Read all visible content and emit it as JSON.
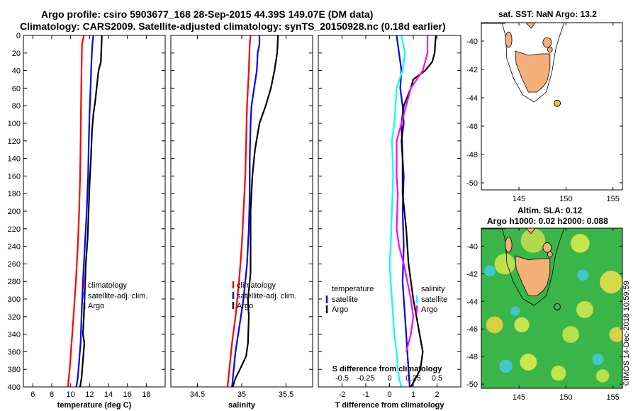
{
  "figure": {
    "title_line1": "Argo profile: csiro 5903677_168 28-Sep-2015 44.39S 149.07E (DM data)",
    "title_line2": "Climatology: CARS2009. Satellite-adjusted climatology: synTS_20150928.nc (0.18d earlier)",
    "map1_title": "sat. SST: NaN Argo: 13.2",
    "map2_title_line1": "Altim. SLA: 0.12",
    "map2_title_line2": "Argo h1000: 0.02 h2000: 0.088",
    "credit": "©IMOS 14-Dec-2018 10:59:59"
  },
  "colors": {
    "climatology": "#ff0000",
    "satellite_adj": "#0000ff",
    "argo": "#000000",
    "temp_satellite": "#0000ff",
    "sal_satellite": "#00ffff",
    "temp_argo": "#000000",
    "sal_argo": "#ff00ff",
    "land": "#f5b07a",
    "sla_green": "#39b54a"
  },
  "chart_data": [
    {
      "type": "line",
      "id": "temperature",
      "xlabel": "temperature (deg C)",
      "ylabel": "",
      "xlim": [
        5,
        20
      ],
      "ylim": [
        400,
        0
      ],
      "xticks": [
        "6",
        "8",
        "10",
        "12",
        "14",
        "16",
        "18"
      ],
      "xtick_values": [
        6,
        8,
        10,
        12,
        14,
        16,
        18
      ],
      "yticks": [
        0,
        20,
        40,
        60,
        80,
        100,
        120,
        140,
        160,
        180,
        200,
        220,
        240,
        260,
        280,
        300,
        320,
        340,
        360,
        380,
        400
      ],
      "legend": [
        "climatology",
        "satellite-adj. clim.",
        "Argo"
      ],
      "series": [
        {
          "name": "climatology",
          "color": "#ff0000",
          "x": [
            11.4,
            11.2,
            11.15,
            11.1,
            11.05,
            11.0,
            10.9,
            10.75,
            10.55,
            10.3,
            10.1,
            9.9,
            9.7
          ],
          "y": [
            0,
            10,
            40,
            80,
            120,
            160,
            200,
            240,
            280,
            320,
            350,
            380,
            400
          ]
        },
        {
          "name": "satellite-adj. clim.",
          "color": "#0000ff",
          "x": [
            12.4,
            12.3,
            12.2,
            12.1,
            12.0,
            11.9,
            11.85,
            11.7,
            11.5,
            11.3,
            11.15,
            11.05,
            10.9,
            10.75,
            10.6
          ],
          "y": [
            0,
            10,
            30,
            60,
            90,
            130,
            160,
            200,
            240,
            280,
            320,
            350,
            370,
            390,
            400
          ]
        },
        {
          "name": "Argo",
          "color": "#000000",
          "x": [
            13.3,
            13.25,
            13.2,
            12.95,
            12.75,
            12.6,
            12.4,
            12.25,
            12.15,
            12.0,
            11.9,
            11.8,
            11.6,
            11.5,
            11.4,
            11.3,
            11.45,
            11.3,
            11.15,
            11.0
          ],
          "y": [
            0,
            15,
            30,
            40,
            60,
            75,
            90,
            110,
            140,
            170,
            200,
            230,
            260,
            290,
            320,
            340,
            350,
            370,
            390,
            400
          ]
        }
      ]
    },
    {
      "type": "line",
      "id": "salinity",
      "xlabel": "salinity",
      "xlim": [
        34.2,
        35.8
      ],
      "ylim": [
        400,
        0
      ],
      "xticks": [
        "34.5",
        "35",
        "35.5"
      ],
      "xtick_values": [
        34.5,
        35,
        35.5
      ],
      "legend": [
        "climatology",
        "satellite-adj. clim.",
        "Argo"
      ],
      "series": [
        {
          "name": "climatology",
          "color": "#ff0000",
          "x": [
            35.1,
            35.09,
            35.08,
            35.06,
            35.05,
            35.04,
            35.02,
            35.0,
            34.97,
            34.93,
            34.89,
            34.86,
            34.84
          ],
          "y": [
            0,
            10,
            40,
            80,
            120,
            160,
            200,
            240,
            280,
            320,
            350,
            380,
            400
          ]
        },
        {
          "name": "satellite-adj. clim.",
          "color": "#0000ff",
          "x": [
            35.2,
            35.2,
            35.18,
            35.17,
            35.14,
            35.11,
            35.1,
            35.09,
            35.09,
            35.08,
            35.06,
            35.02,
            34.99,
            34.96,
            34.93,
            34.91,
            34.89
          ],
          "y": [
            0,
            10,
            20,
            40,
            60,
            80,
            100,
            140,
            180,
            220,
            260,
            300,
            320,
            340,
            360,
            380,
            400
          ]
        },
        {
          "name": "Argo",
          "color": "#000000",
          "x": [
            35.41,
            35.4,
            35.37,
            35.33,
            35.27,
            35.2,
            35.15,
            35.12,
            35.1,
            35.1,
            35.1,
            35.07,
            35.08,
            35.07,
            35.05,
            34.98,
            34.93,
            34.9
          ],
          "y": [
            0,
            20,
            40,
            60,
            80,
            100,
            130,
            160,
            200,
            240,
            270,
            300,
            320,
            350,
            365,
            380,
            390,
            400
          ]
        }
      ]
    },
    {
      "type": "line",
      "id": "differences",
      "xlabel": "T difference from climatology",
      "xlabel_top": "S difference from climatology",
      "xlim": [
        -3,
        3
      ],
      "ylim": [
        400,
        0
      ],
      "xticks": [
        "-2",
        "-1",
        "0",
        "1",
        "2"
      ],
      "xtick_values": [
        -2,
        -1,
        0,
        1,
        2
      ],
      "xticks_top": [
        "-0.5",
        "-0.25",
        "0",
        "0.25",
        "0.5"
      ],
      "xtick_values_top": [
        -0.5,
        -0.25,
        0,
        0.25,
        0.5
      ],
      "legend_temperature": {
        "title": "temperature",
        "items": [
          "satellite",
          "Argo"
        ]
      },
      "legend_salinity": {
        "title": "salinity",
        "items": [
          "satellite",
          "Argo"
        ]
      },
      "series": [
        {
          "name": "temperature satellite",
          "color": "#0000ff",
          "x": [
            0.3,
            0.4,
            0.5,
            0.45,
            0.55,
            0.6,
            0.5,
            0.55,
            0.6,
            0.55,
            0.6,
            0.55,
            0.65,
            0.7,
            0.75,
            0.8,
            0.85
          ],
          "y": [
            0,
            20,
            40,
            60,
            80,
            100,
            120,
            140,
            160,
            200,
            240,
            280,
            320,
            340,
            360,
            380,
            400
          ]
        },
        {
          "name": "temperature Argo",
          "color": "#000000",
          "x": [
            1.95,
            1.9,
            1.8,
            1.5,
            1.0,
            0.9,
            0.6,
            0.5,
            0.55,
            0.55,
            0.7,
            0.8,
            1.0,
            1.2,
            1.4,
            1.3,
            1.1,
            0.9
          ],
          "y": [
            0,
            20,
            30,
            40,
            50,
            60,
            80,
            100,
            140,
            180,
            220,
            260,
            300,
            330,
            360,
            380,
            390,
            400
          ]
        },
        {
          "name": "salinity satellite",
          "color": "#00ffff",
          "x": [
            0.5,
            0.65,
            0.55,
            0.3,
            0.25,
            0.2,
            0.1,
            0.15,
            0.1,
            0.05,
            0.0,
            0.05,
            0.1,
            0.15,
            0.2,
            0.3,
            0.35,
            0.4,
            0.45,
            0.5
          ],
          "y": [
            0,
            20,
            40,
            60,
            80,
            100,
            120,
            160,
            200,
            240,
            260,
            280,
            300,
            320,
            340,
            360,
            380,
            390,
            395,
            400
          ]
        },
        {
          "name": "salinity Argo",
          "color": "#ff00ff",
          "x": [
            1.6,
            1.6,
            1.4,
            0.9,
            0.7,
            0.5,
            0.3,
            0.3,
            0.35,
            0.3,
            0.4,
            0.6,
            0.75,
            0.9,
            1.0,
            0.9,
            0.7
          ],
          "y": [
            0,
            20,
            40,
            60,
            80,
            100,
            120,
            160,
            180,
            220,
            240,
            260,
            280,
            300,
            320,
            340,
            360
          ]
        }
      ]
    },
    {
      "type": "map",
      "id": "sst_map",
      "title": "sat. SST: NaN Argo: 13.2",
      "xlim": [
        141,
        156
      ],
      "ylim": [
        -50.5,
        -38.7
      ],
      "xticks": [
        "145",
        "150",
        "155"
      ],
      "xtick_values": [
        145,
        150,
        155
      ],
      "yticks": [
        "-40",
        "-42",
        "-44",
        "-46",
        "-48",
        "-50"
      ],
      "ytick_values": [
        -40,
        -42,
        -44,
        -46,
        -48,
        -50
      ],
      "argo_position": {
        "lon": 149.07,
        "lat": -44.39
      }
    },
    {
      "type": "map",
      "id": "sla_map",
      "title": "Altim. SLA: 0.12",
      "xlim": [
        141,
        156
      ],
      "ylim": [
        -50.3,
        -38.7
      ],
      "xticks": [
        "145",
        "150",
        "155"
      ],
      "xtick_values": [
        145,
        150,
        155
      ],
      "yticks": [
        "-40",
        "-42",
        "-44",
        "-46",
        "-48",
        "-50"
      ],
      "ytick_values": [
        -40,
        -42,
        -44,
        -46,
        -48,
        -50
      ],
      "argo_position": {
        "lon": 149.07,
        "lat": -44.39
      }
    }
  ]
}
